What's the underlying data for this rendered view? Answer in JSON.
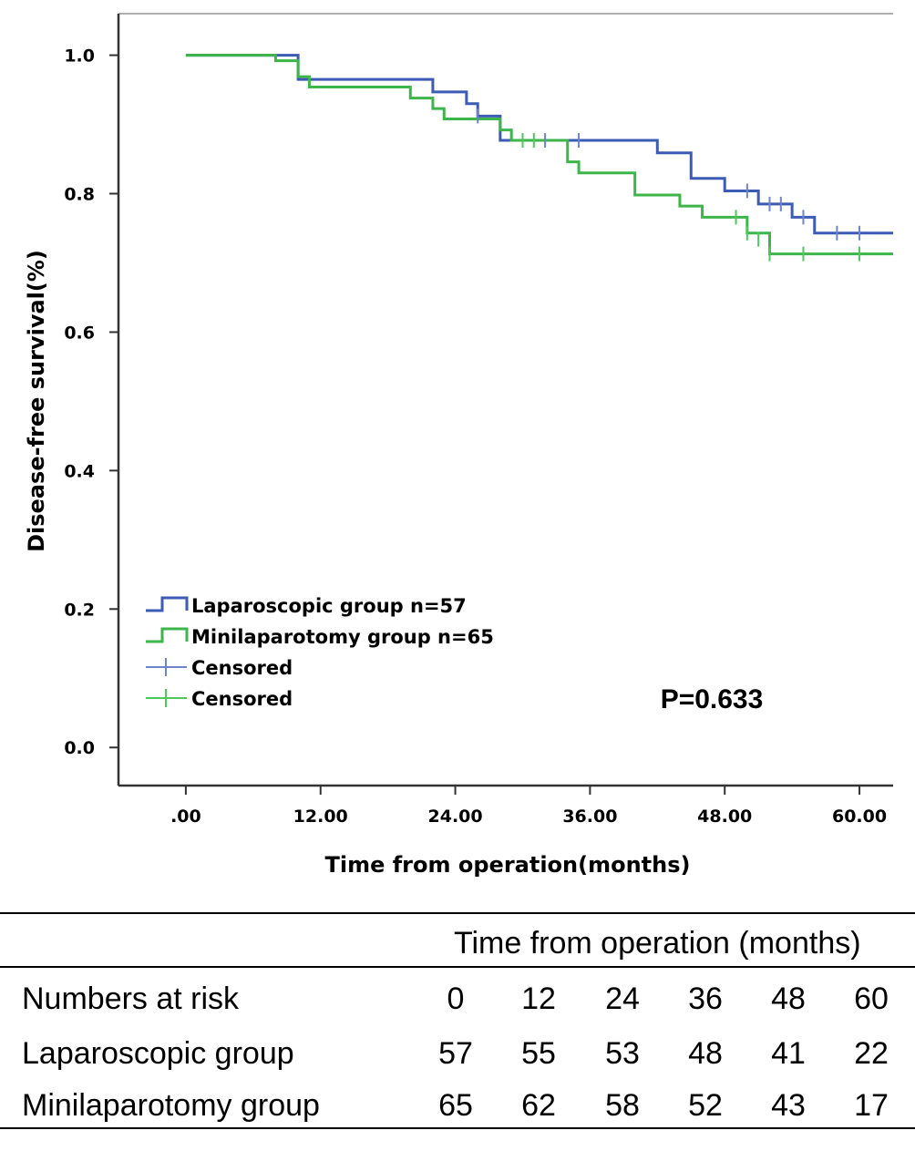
{
  "chart_data": {
    "type": "line",
    "subtype": "kaplan-meier",
    "xlabel": "Time from operation(months)",
    "ylabel": "Disease-free survival(%)",
    "xlim": [
      -6,
      63
    ],
    "ylim": [
      -0.055,
      1.06
    ],
    "x_ticks": [
      {
        "value": 0,
        "label": ".00"
      },
      {
        "value": 12,
        "label": "12.00"
      },
      {
        "value": 24,
        "label": "24.00"
      },
      {
        "value": 36,
        "label": "36.00"
      },
      {
        "value": 48,
        "label": "48.00"
      },
      {
        "value": 60,
        "label": "60.00"
      }
    ],
    "y_ticks": [
      {
        "value": 0.0,
        "label": "0.0"
      },
      {
        "value": 0.2,
        "label": "0.2"
      },
      {
        "value": 0.4,
        "label": "0.4"
      },
      {
        "value": 0.6,
        "label": "0.6"
      },
      {
        "value": 0.8,
        "label": "0.8"
      },
      {
        "value": 1.0,
        "label": "1.0"
      }
    ],
    "annotation": "P=0.633",
    "series": [
      {
        "name": "Laparoscopic group n=57",
        "color": "#3b5bb5",
        "censor_color": "#6e84c9",
        "steps": [
          [
            0,
            1.0
          ],
          [
            10,
            0.965
          ],
          [
            22,
            0.947
          ],
          [
            25,
            0.93
          ],
          [
            26,
            0.912
          ],
          [
            28,
            0.877
          ],
          [
            42,
            0.859
          ],
          [
            45,
            0.822
          ],
          [
            48,
            0.804
          ],
          [
            51,
            0.785
          ],
          [
            54,
            0.766
          ],
          [
            56,
            0.743
          ],
          [
            63,
            0.743
          ]
        ],
        "censored": [
          [
            26,
            0.912
          ],
          [
            32,
            0.877
          ],
          [
            35,
            0.877
          ],
          [
            50,
            0.804
          ],
          [
            52,
            0.785
          ],
          [
            53,
            0.785
          ],
          [
            55,
            0.766
          ],
          [
            58,
            0.743
          ],
          [
            60,
            0.743
          ]
        ]
      },
      {
        "name": "Minilaparotomy group n=65",
        "color": "#3db54a",
        "censor_color": "#4ec85a",
        "steps": [
          [
            0,
            1.0
          ],
          [
            8,
            0.992
          ],
          [
            10,
            0.969
          ],
          [
            11,
            0.954
          ],
          [
            20,
            0.938
          ],
          [
            22,
            0.923
          ],
          [
            23,
            0.908
          ],
          [
            26,
            0.908
          ],
          [
            28,
            0.892
          ],
          [
            29,
            0.877
          ],
          [
            34,
            0.846
          ],
          [
            35,
            0.83
          ],
          [
            40,
            0.798
          ],
          [
            44,
            0.782
          ],
          [
            46,
            0.766
          ],
          [
            50,
            0.743
          ],
          [
            52,
            0.713
          ],
          [
            63,
            0.713
          ]
        ],
        "censored": [
          [
            30,
            0.877
          ],
          [
            31,
            0.877
          ],
          [
            49,
            0.766
          ],
          [
            50,
            0.743
          ],
          [
            51,
            0.734
          ],
          [
            52,
            0.713
          ],
          [
            55,
            0.713
          ],
          [
            60,
            0.713
          ]
        ]
      }
    ],
    "legend": [
      {
        "type": "line",
        "label": "Laparoscopic group n=57",
        "color": "#3b5bb5"
      },
      {
        "type": "line",
        "label": "Minilaparotomy group n=65",
        "color": "#3db54a"
      },
      {
        "type": "censor",
        "label": "Censored",
        "color": "#6e84c9"
      },
      {
        "type": "censor",
        "label": "Censored",
        "color": "#4ec85a"
      }
    ]
  },
  "risk_table": {
    "header": "Time from operation (months)",
    "rows": [
      {
        "label": "Numbers at risk",
        "values": [
          "0",
          "12",
          "24",
          "36",
          "48",
          "60"
        ]
      },
      {
        "label": "Laparoscopic group",
        "values": [
          "57",
          "55",
          "53",
          "48",
          "41",
          "22"
        ]
      },
      {
        "label": "Minilaparotomy group",
        "values": [
          "65",
          "62",
          "58",
          "52",
          "43",
          "17"
        ]
      }
    ]
  }
}
